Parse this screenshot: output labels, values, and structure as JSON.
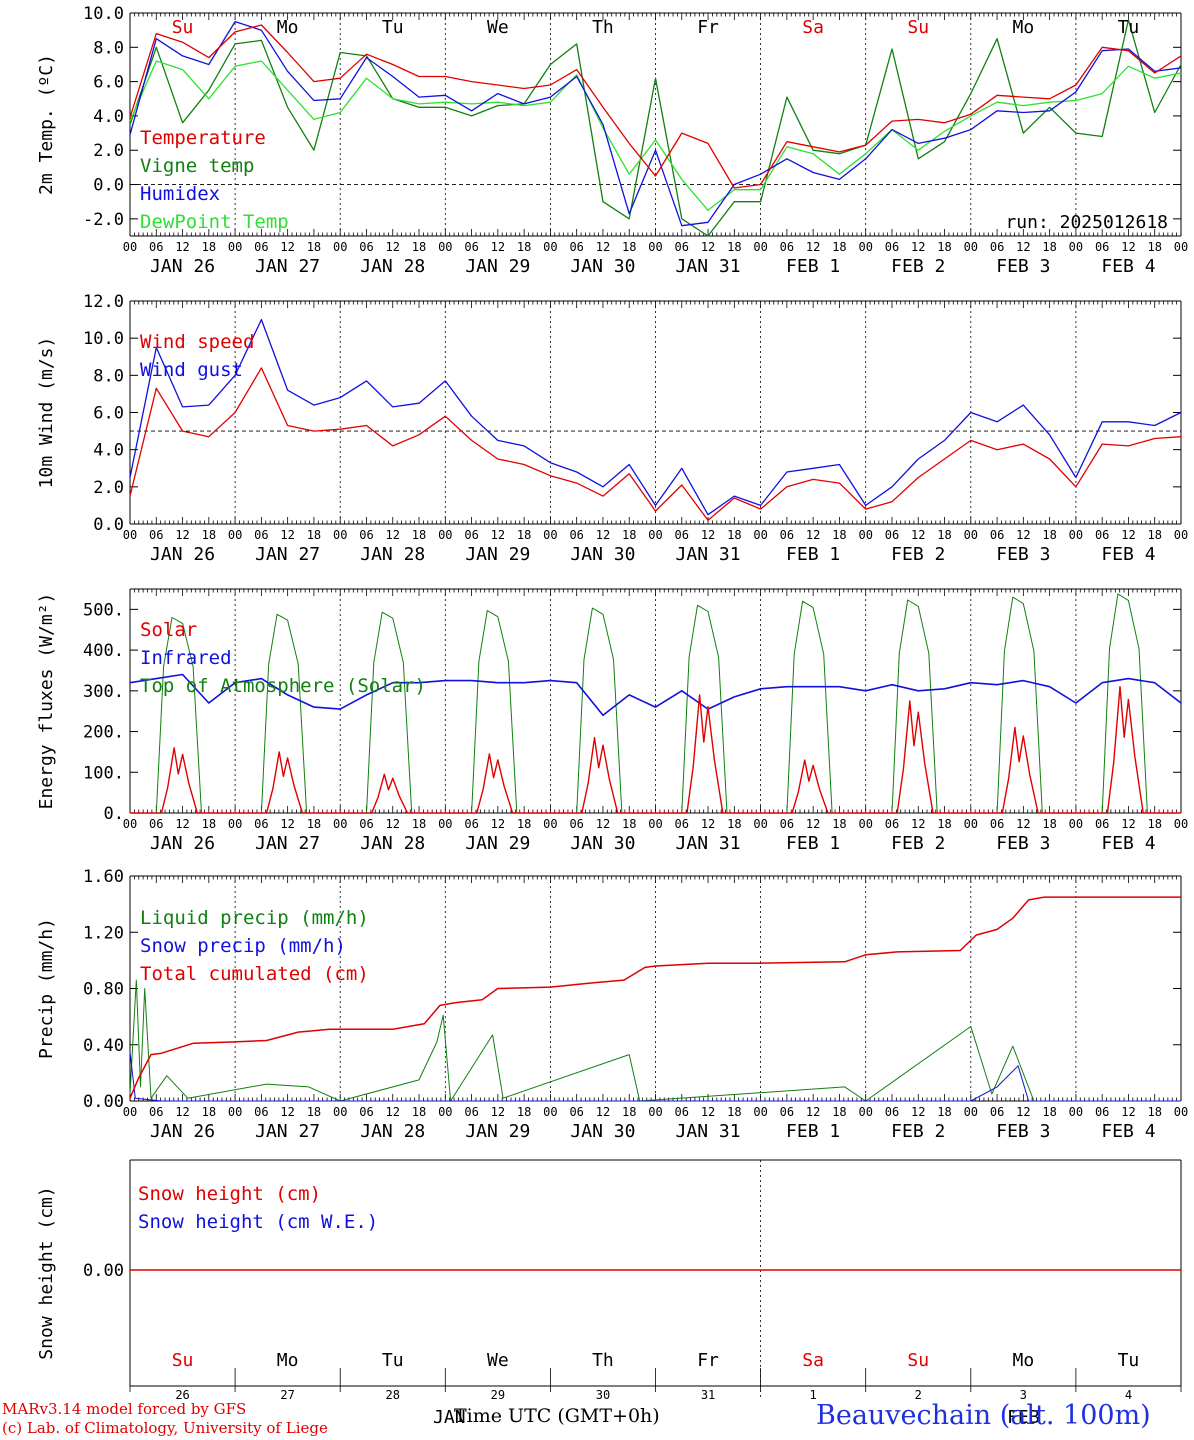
{
  "footer": {
    "credit_line1": "MARv3.14 model forced by GFS",
    "credit_line2": "(c) Lab. of Climatology, University of Liege",
    "xaxis_title": "Time UTC (GMT+0h)",
    "station": "Beauvechain (alt. 100m)",
    "bottom_month_left": "JAN",
    "bottom_month_right": "FEB"
  },
  "colors": {
    "red": "#e00000",
    "green": "#108010",
    "blue": "#1010e0",
    "lightgreen": "#30e030",
    "grid": "#000000"
  },
  "time_axis": {
    "hour_ticks": [
      "00",
      "06",
      "12",
      "18"
    ],
    "date_labels": [
      "JAN 26",
      "JAN 27",
      "JAN 28",
      "JAN 29",
      "JAN 30",
      "JAN 31",
      "FEB  1",
      "FEB  2",
      "FEB  3",
      "FEB  4"
    ],
    "weekday_labels": [
      "Su",
      "Mo",
      "Tu",
      "We",
      "Th",
      "Fr",
      "Sa",
      "Su",
      "Mo",
      "Tu"
    ],
    "weekday_colors": [
      "red",
      "black",
      "black",
      "black",
      "black",
      "black",
      "red",
      "red",
      "black",
      "black"
    ],
    "day_numbers": [
      "26",
      "27",
      "28",
      "29",
      "30",
      "31",
      "1",
      "2",
      "3",
      "4"
    ]
  },
  "chart_data": [
    {
      "type": "line",
      "ylabel": "2m Temp. (ºC)",
      "ylim": [
        -3,
        10
      ],
      "yticks": [
        "-2.0",
        "0.0",
        "2.0",
        "4.0",
        "6.0",
        "8.0",
        "10.0"
      ],
      "ytick_values": [
        -2,
        0,
        2,
        4,
        6,
        8,
        10
      ],
      "reference_line": 0,
      "annotation": "run: 2025012618",
      "x_days": [
        0,
        0.25,
        0.5,
        0.75,
        1,
        1.25,
        1.5,
        1.75,
        2,
        2.25,
        2.5,
        2.75,
        3,
        3.25,
        3.5,
        3.75,
        4,
        4.25,
        4.5,
        4.75,
        5,
        5.25,
        5.5,
        5.75,
        6,
        6.25,
        6.5,
        6.75,
        7,
        7.25,
        7.5,
        7.75,
        8,
        8.25,
        8.5,
        8.75,
        9,
        9.25,
        9.5,
        9.75,
        10
      ],
      "series": [
        {
          "name": "Temperature",
          "color": "red",
          "values": [
            3.9,
            8.8,
            8.3,
            7.4,
            8.9,
            9.3,
            7.7,
            6.0,
            6.2,
            7.6,
            7.0,
            6.3,
            6.3,
            6.0,
            5.8,
            5.6,
            5.8,
            6.7,
            4.5,
            2.4,
            0.5,
            3.0,
            2.4,
            -0.2,
            0.0,
            2.5,
            2.2,
            1.9,
            2.3,
            3.7,
            3.8,
            3.6,
            4.1,
            5.2,
            5.1,
            5.0,
            5.8,
            8.0,
            7.8,
            6.5,
            7.5
          ]
        },
        {
          "name": "Vigne temp",
          "color": "green",
          "values": [
            3.5,
            8.0,
            3.6,
            5.5,
            8.2,
            8.4,
            4.5,
            2.0,
            7.7,
            7.5,
            5.0,
            4.5,
            4.5,
            4.0,
            4.6,
            4.7,
            7.0,
            8.2,
            -1.0,
            -2.0,
            6.2,
            -2.0,
            -3.0,
            -1.0,
            -1.0,
            5.1,
            2.0,
            1.8,
            2.3,
            7.9,
            1.5,
            2.5,
            5.3,
            8.5,
            3.0,
            4.5,
            3.0,
            2.8,
            9.6,
            4.2,
            7.0
          ]
        },
        {
          "name": "Humidex",
          "color": "blue",
          "values": [
            2.9,
            8.5,
            7.5,
            7.0,
            9.5,
            9.0,
            6.6,
            4.9,
            5.0,
            7.4,
            6.3,
            5.1,
            5.2,
            4.3,
            5.3,
            4.7,
            5.1,
            6.3,
            3.5,
            -1.7,
            2.0,
            -2.4,
            -2.2,
            0.0,
            0.6,
            1.5,
            0.7,
            0.3,
            1.5,
            3.2,
            2.4,
            2.7,
            3.2,
            4.3,
            4.2,
            4.3,
            5.4,
            7.8,
            7.9,
            6.6,
            6.8
          ]
        },
        {
          "name": "DewPoint Temp",
          "color": "lightgreen",
          "values": [
            3.7,
            7.2,
            6.7,
            5.0,
            6.9,
            7.2,
            5.5,
            3.8,
            4.2,
            6.2,
            5.0,
            4.7,
            4.8,
            4.7,
            4.8,
            4.6,
            4.8,
            6.4,
            3.3,
            0.6,
            2.6,
            0.3,
            -1.5,
            -0.3,
            -0.3,
            2.2,
            1.8,
            0.6,
            1.8,
            3.2,
            2.0,
            3.1,
            4.0,
            4.8,
            4.6,
            4.8,
            4.9,
            5.3,
            6.9,
            6.2,
            6.5
          ]
        }
      ]
    },
    {
      "type": "line",
      "ylabel": "10m Wind (m/s)",
      "ylim": [
        0,
        12
      ],
      "yticks": [
        "0.0",
        "2.0",
        "4.0",
        "6.0",
        "8.0",
        "10.0",
        "12.0"
      ],
      "ytick_values": [
        0,
        2,
        4,
        6,
        8,
        10,
        12
      ],
      "reference_line": 5,
      "x_days": [
        0,
        0.25,
        0.5,
        0.75,
        1,
        1.25,
        1.5,
        1.75,
        2,
        2.25,
        2.5,
        2.75,
        3,
        3.25,
        3.5,
        3.75,
        4,
        4.25,
        4.5,
        4.75,
        5,
        5.25,
        5.5,
        5.75,
        6,
        6.25,
        6.5,
        6.75,
        7,
        7.25,
        7.5,
        7.75,
        8,
        8.25,
        8.5,
        8.75,
        9,
        9.25,
        9.5,
        9.75,
        10
      ],
      "series": [
        {
          "name": "Wind speed",
          "color": "red",
          "values": [
            1.5,
            7.3,
            5.0,
            4.7,
            6.0,
            8.4,
            5.3,
            5.0,
            5.1,
            5.3,
            4.2,
            4.8,
            5.8,
            4.5,
            3.5,
            3.2,
            2.6,
            2.2,
            1.5,
            2.7,
            0.7,
            2.1,
            0.2,
            1.4,
            0.8,
            2.0,
            2.4,
            2.2,
            0.8,
            1.2,
            2.5,
            3.5,
            4.5,
            4.0,
            4.3,
            3.5,
            2.0,
            4.3,
            4.2,
            4.6,
            4.7
          ]
        },
        {
          "name": "Wind gust",
          "color": "blue",
          "values": [
            2.5,
            9.5,
            6.3,
            6.4,
            8.0,
            11.0,
            7.2,
            6.4,
            6.8,
            7.7,
            6.3,
            6.5,
            7.7,
            5.8,
            4.5,
            4.2,
            3.3,
            2.8,
            2.0,
            3.2,
            1.0,
            3.0,
            0.5,
            1.5,
            1.0,
            2.8,
            3.0,
            3.2,
            1.0,
            2.0,
            3.5,
            4.5,
            6.0,
            5.5,
            6.4,
            4.8,
            2.5,
            5.5,
            5.5,
            5.3,
            6.0
          ]
        }
      ]
    },
    {
      "type": "line",
      "ylabel": "Energy fluxes (W/m²)",
      "ylim": [
        0,
        550
      ],
      "yticks": [
        "0.",
        "100.",
        "200.",
        "300.",
        "400.",
        "500."
      ],
      "ytick_values": [
        0,
        100,
        200,
        300,
        400,
        500
      ],
      "solar_peaks": [
        160,
        150,
        95,
        145,
        185,
        290,
        130,
        275,
        210,
        310
      ],
      "toa_peaks": [
        480,
        488,
        493,
        497,
        503,
        510,
        520,
        523,
        530,
        538
      ],
      "infrared_values": [
        320,
        330,
        340,
        270,
        320,
        330,
        290,
        260,
        255,
        290,
        320,
        320,
        325,
        325,
        320,
        320,
        325,
        320,
        240,
        290,
        260,
        300,
        255,
        285,
        305,
        310,
        310,
        310,
        300,
        315,
        300,
        305,
        320,
        315,
        325,
        310,
        270,
        320,
        330,
        320,
        270
      ],
      "series": [
        {
          "name": "Solar",
          "color": "red"
        },
        {
          "name": "Infrared",
          "color": "blue"
        },
        {
          "name": "Top of Atmosphere (Solar)",
          "color": "green"
        }
      ]
    },
    {
      "type": "line",
      "ylabel": "Precip (mm/h)",
      "ylim": [
        0,
        1.6
      ],
      "yticks": [
        "0.00",
        "0.40",
        "0.80",
        "1.20",
        "1.60"
      ],
      "ytick_values": [
        0,
        0.4,
        0.8,
        1.2,
        1.6
      ],
      "series": [
        {
          "name": "Liquid precip (mm/h)",
          "color": "green",
          "points": [
            [
              0,
              0.05
            ],
            [
              0.06,
              0.86
            ],
            [
              0.1,
              0.1
            ],
            [
              0.14,
              0.8
            ],
            [
              0.2,
              0.02
            ],
            [
              0.35,
              0.18
            ],
            [
              0.55,
              0.02
            ],
            [
              1.3,
              0.12
            ],
            [
              1.7,
              0.1
            ],
            [
              2.0,
              0
            ],
            [
              2.75,
              0.15
            ],
            [
              2.92,
              0.42
            ],
            [
              2.98,
              0.61
            ],
            [
              3.05,
              0
            ],
            [
              3.45,
              0.47
            ],
            [
              3.55,
              0.02
            ],
            [
              4.75,
              0.33
            ],
            [
              4.85,
              0
            ],
            [
              6.8,
              0.1
            ],
            [
              7.0,
              0
            ],
            [
              8.0,
              0.53
            ],
            [
              8.2,
              0.05
            ],
            [
              8.4,
              0.39
            ],
            [
              8.6,
              0
            ],
            [
              10,
              0
            ]
          ]
        },
        {
          "name": "Snow precip (mm/h)",
          "color": "blue",
          "points": [
            [
              0,
              0.35
            ],
            [
              0.05,
              0.02
            ],
            [
              0.3,
              0
            ],
            [
              8.0,
              0
            ],
            [
              8.25,
              0.1
            ],
            [
              8.45,
              0.25
            ],
            [
              8.55,
              0
            ],
            [
              10,
              0
            ]
          ]
        },
        {
          "name": "Total cumulated (cm)",
          "color": "red",
          "points": [
            [
              0,
              0.02
            ],
            [
              0.08,
              0.16
            ],
            [
              0.2,
              0.33
            ],
            [
              0.3,
              0.34
            ],
            [
              0.6,
              0.41
            ],
            [
              1.0,
              0.42
            ],
            [
              1.3,
              0.43
            ],
            [
              1.6,
              0.49
            ],
            [
              1.9,
              0.51
            ],
            [
              2.5,
              0.51
            ],
            [
              2.8,
              0.55
            ],
            [
              2.95,
              0.68
            ],
            [
              3.1,
              0.7
            ],
            [
              3.35,
              0.72
            ],
            [
              3.5,
              0.8
            ],
            [
              4.0,
              0.81
            ],
            [
              4.4,
              0.84
            ],
            [
              4.7,
              0.86
            ],
            [
              4.9,
              0.95
            ],
            [
              5.0,
              0.96
            ],
            [
              5.5,
              0.98
            ],
            [
              6.0,
              0.98
            ],
            [
              6.8,
              0.99
            ],
            [
              7.0,
              1.04
            ],
            [
              7.3,
              1.06
            ],
            [
              7.9,
              1.07
            ],
            [
              8.05,
              1.18
            ],
            [
              8.25,
              1.22
            ],
            [
              8.4,
              1.3
            ],
            [
              8.55,
              1.43
            ],
            [
              8.7,
              1.45
            ],
            [
              9.0,
              1.45
            ],
            [
              10,
              1.45
            ]
          ]
        }
      ]
    },
    {
      "type": "line",
      "ylabel": "Snow height (cm)",
      "yticks": [
        "0.00"
      ],
      "ytick_values": [
        0
      ],
      "series": [
        {
          "name": "Snow height (cm)",
          "color": "red",
          "values": [
            0,
            0
          ]
        },
        {
          "name": "Snow height (cm W.E.)",
          "color": "blue",
          "values": [
            0,
            0
          ]
        }
      ]
    }
  ]
}
